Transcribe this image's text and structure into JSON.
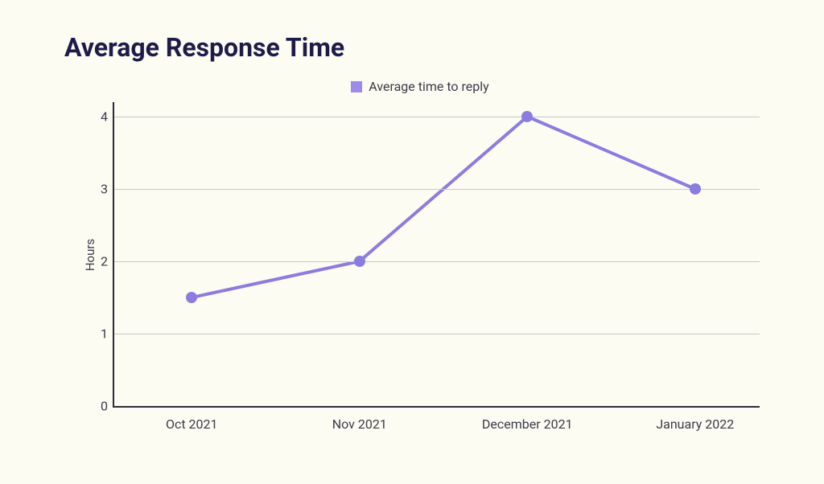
{
  "title": "Average Response Time",
  "title_color": "#1e1b4b",
  "background_color": "#fcfcf2",
  "chart": {
    "type": "line",
    "legend": {
      "label": "Average time to reply",
      "swatch_color": "#9b8cec",
      "text_color": "#3a3a4a"
    },
    "ylabel": "Hours",
    "ylabel_color": "#3a3a4a",
    "axis_color": "#2a2a3a",
    "grid_color": "#c8c8c8",
    "tick_color": "#3a3a4a",
    "ylim": [
      0,
      4.2
    ],
    "yticks": [
      0,
      1,
      2,
      3,
      4
    ],
    "xticks": [
      "Oct 2021",
      "Nov 2021",
      "December 2021",
      "January 2022"
    ],
    "x_positions_pct": [
      12,
      38,
      64,
      90
    ],
    "values": [
      1.5,
      2,
      4,
      3
    ],
    "line_color": "#8b7ce0",
    "line_width": 4,
    "marker_color": "#8b7ce0",
    "marker_radius": 7
  }
}
